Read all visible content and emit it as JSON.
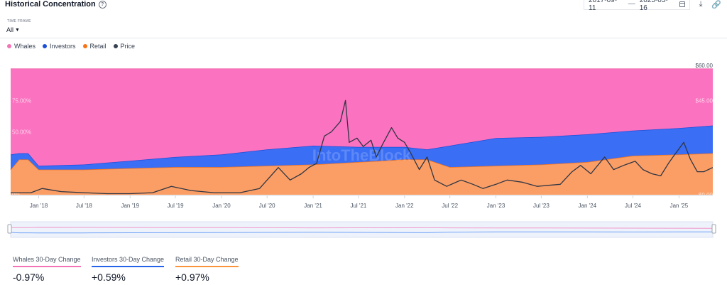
{
  "header": {
    "title": "Historical Concentration",
    "help_icon": "help-circle-icon",
    "start_date": "2017-09-11",
    "end_date": "2025-05-16",
    "calendar_icon": "calendar-icon",
    "download_icon": "download-icon",
    "link_icon": "link-icon"
  },
  "time_frame": {
    "label": "TIME FRAME",
    "value": "All"
  },
  "legend": [
    {
      "label": "Whales",
      "color": "#f472b6"
    },
    {
      "label": "Investors",
      "color": "#1d4ed8"
    },
    {
      "label": "Retail",
      "color": "#f97316"
    },
    {
      "label": "Price",
      "color": "#374151"
    }
  ],
  "stats": [
    {
      "label": "Whales 30-Day Change",
      "value": "-0.97%",
      "color": "#f472b6"
    },
    {
      "label": "Investors 30-Day Change",
      "value": "+0.59%",
      "color": "#2563eb"
    },
    {
      "label": "Retail 30-Day Change",
      "value": "+0.97%",
      "color": "#fb923c"
    }
  ],
  "chart_data": {
    "type": "area",
    "stacked": true,
    "watermark": "IntoTheBlock",
    "x_start": "2017-09-11",
    "x_end": "2025-05-16",
    "x_ticks": [
      "Jan '18",
      "Jul '18",
      "Jan '19",
      "Jul '19",
      "Jan '20",
      "Jul '20",
      "Jan '21",
      "Jul '21",
      "Jan '22",
      "Jul '22",
      "Jan '23",
      "Jul '23",
      "Jan '24",
      "Jul '24",
      "Jan '25"
    ],
    "x_tick_dates": [
      "2018-01-01",
      "2018-07-01",
      "2019-01-01",
      "2019-07-01",
      "2020-01-01",
      "2020-07-01",
      "2021-01-01",
      "2021-07-01",
      "2022-01-01",
      "2022-07-01",
      "2023-01-01",
      "2023-07-01",
      "2024-01-01",
      "2024-07-01",
      "2025-01-01"
    ],
    "y_left_ticks": [
      "75.00%",
      "50.00%",
      "0%"
    ],
    "y_left_tick_values": [
      75,
      50,
      0
    ],
    "y_left_range": [
      0,
      100
    ],
    "y_right_ticks": [
      "$60.00",
      "$45.00",
      "$0.00"
    ],
    "y_right_tick_values": [
      60,
      45,
      0
    ],
    "y_right_range": [
      0,
      60
    ],
    "dates": [
      "2017-09-11",
      "2017-10-15",
      "2017-11-20",
      "2018-01-01",
      "2018-07-01",
      "2019-01-01",
      "2019-07-01",
      "2020-01-01",
      "2020-07-01",
      "2021-01-01",
      "2021-07-01",
      "2022-01-01",
      "2022-04-01",
      "2022-07-01",
      "2023-01-01",
      "2023-07-01",
      "2024-01-01",
      "2024-07-01",
      "2025-01-01",
      "2025-05-16"
    ],
    "series": [
      {
        "name": "Retail",
        "values": [
          20,
          28,
          28,
          20,
          20,
          21,
          22,
          22,
          23,
          24,
          26,
          28,
          28,
          22,
          23,
          24,
          26,
          31,
          32,
          33
        ]
      },
      {
        "name": "Investors",
        "values": [
          12,
          5,
          5,
          3,
          4,
          6,
          8,
          10,
          13,
          15,
          12,
          10,
          8,
          17,
          22,
          22,
          22,
          20,
          21,
          22
        ]
      },
      {
        "name": "Whales",
        "values": [
          68,
          67,
          67,
          77,
          76,
          73,
          70,
          68,
          64,
          61,
          62,
          62,
          64,
          61,
          55,
          54,
          52,
          49,
          47,
          45
        ]
      }
    ],
    "price": {
      "name": "Price",
      "dates": [
        "2017-09-11",
        "2017-12-01",
        "2018-01-15",
        "2018-04-01",
        "2018-07-01",
        "2018-10-01",
        "2019-01-01",
        "2019-04-01",
        "2019-06-15",
        "2019-09-01",
        "2019-12-01",
        "2020-03-15",
        "2020-06-01",
        "2020-08-15",
        "2020-10-01",
        "2020-11-15",
        "2020-12-15",
        "2021-01-15",
        "2021-02-15",
        "2021-03-15",
        "2021-04-20",
        "2021-05-10",
        "2021-05-25",
        "2021-06-25",
        "2021-07-20",
        "2021-08-20",
        "2021-09-10",
        "2021-10-05",
        "2021-11-10",
        "2021-12-05",
        "2022-01-01",
        "2022-01-25",
        "2022-03-01",
        "2022-04-01",
        "2022-05-01",
        "2022-06-18",
        "2022-08-15",
        "2022-10-01",
        "2022-11-10",
        "2023-01-01",
        "2023-02-15",
        "2023-04-15",
        "2023-06-15",
        "2023-08-01",
        "2023-09-15",
        "2023-11-01",
        "2023-12-05",
        "2024-01-15",
        "2024-03-10",
        "2024-04-15",
        "2024-05-25",
        "2024-07-10",
        "2024-08-10",
        "2024-09-15",
        "2024-10-20",
        "2024-11-20",
        "2024-12-08",
        "2025-01-20",
        "2025-02-15",
        "2025-03-15",
        "2025-04-10",
        "2025-05-16"
      ],
      "values": [
        1,
        1,
        3,
        1.5,
        1,
        0.5,
        0.5,
        1,
        4,
        2,
        1,
        1,
        3,
        13,
        7,
        10,
        13,
        15,
        28,
        30,
        35,
        45,
        25,
        27,
        23,
        26,
        18,
        24,
        32,
        27,
        25,
        20,
        12,
        18,
        7,
        4,
        7,
        5,
        3,
        5,
        7,
        6,
        4,
        4.5,
        5,
        11,
        14,
        10,
        18,
        12,
        14,
        16,
        12,
        10,
        9,
        15,
        18,
        25,
        17,
        11,
        11,
        13
      ]
    }
  }
}
